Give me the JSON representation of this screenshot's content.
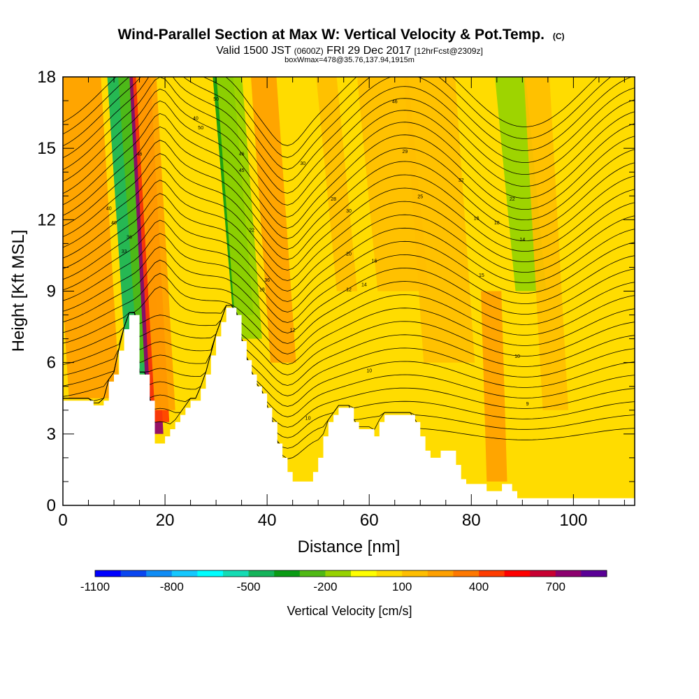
{
  "chart_data": {
    "type": "heatmap",
    "title": "Wind-Parallel Section at Max W: Vertical Velocity & Pot.Temp.",
    "title_mark": "(C)",
    "subtitle_parts": [
      "Valid 1500 JST",
      "(0600Z)",
      "FRI 29 Dec 2017",
      "[12hrFcst@2309z]"
    ],
    "subtitle2": "boxWmax=478@35.76,137.94,1915m",
    "xlabel": "Distance [nm]",
    "ylabel": "Height [Kft MSL]",
    "xlim": [
      0,
      112
    ],
    "ylim": [
      0,
      18
    ],
    "x_ticks": [
      "0",
      "20",
      "40",
      "60",
      "80",
      "100"
    ],
    "y_ticks": [
      "0",
      "3",
      "6",
      "9",
      "12",
      "15",
      "18"
    ],
    "colorbar": {
      "label": "Vertical Velocity [cm/s]",
      "tick_labels": [
        "-1100",
        "-800",
        "-500",
        "-200",
        "100",
        "400",
        "700"
      ],
      "levels": [
        -1100,
        -1000,
        -900,
        -800,
        -700,
        -600,
        -500,
        -400,
        -300,
        -200,
        -100,
        0,
        100,
        200,
        300,
        400,
        500,
        600,
        700,
        800
      ],
      "colors": [
        "#0000ff",
        "#0a46f0",
        "#0f8cf5",
        "#14c8ff",
        "#00ffff",
        "#14dcb4",
        "#14b45a",
        "#0a9b14",
        "#50b914",
        "#96d200",
        "#ffff00",
        "#ffdc00",
        "#ffbe00",
        "#ffa000",
        "#ff7800",
        "#ff3c00",
        "#ff0000",
        "#c80032",
        "#8c006e",
        "#5a0096"
      ]
    },
    "terrain_kft": [
      [
        0,
        4.4
      ],
      [
        6,
        4.4
      ],
      [
        6,
        4.2
      ],
      [
        8,
        4.2
      ],
      [
        8,
        4.4
      ],
      [
        9,
        4.4
      ],
      [
        9,
        5.2
      ],
      [
        10,
        5.2
      ],
      [
        10,
        5.5
      ],
      [
        11,
        5.5
      ],
      [
        11,
        6.5
      ],
      [
        12,
        6.5
      ],
      [
        12,
        7.4
      ],
      [
        13,
        7.4
      ],
      [
        13,
        8
      ],
      [
        15,
        8
      ],
      [
        15,
        5.5
      ],
      [
        17,
        5.5
      ],
      [
        17,
        4.4
      ],
      [
        18,
        4.4
      ],
      [
        18,
        2.6
      ],
      [
        20,
        2.6
      ],
      [
        20,
        2.9
      ],
      [
        21,
        2.9
      ],
      [
        21,
        3.2
      ],
      [
        22,
        3.2
      ],
      [
        22,
        3.5
      ],
      [
        23,
        3.5
      ],
      [
        23,
        3.8
      ],
      [
        24,
        3.8
      ],
      [
        24,
        4.1
      ],
      [
        25,
        4.1
      ],
      [
        25,
        4.4
      ],
      [
        27,
        4.4
      ],
      [
        27,
        4.9
      ],
      [
        28,
        4.9
      ],
      [
        28,
        5.5
      ],
      [
        29,
        5.5
      ],
      [
        29,
        6.3
      ],
      [
        30,
        6.3
      ],
      [
        30,
        7.1
      ],
      [
        31,
        7.1
      ],
      [
        31,
        7.7
      ],
      [
        32,
        7.7
      ],
      [
        32,
        8.3
      ],
      [
        34,
        8.3
      ],
      [
        34,
        8
      ],
      [
        35,
        8
      ],
      [
        35,
        6.9
      ],
      [
        36,
        6.9
      ],
      [
        36,
        6.1
      ],
      [
        37,
        6.1
      ],
      [
        37,
        5.5
      ],
      [
        38,
        5.5
      ],
      [
        38,
        5
      ],
      [
        39,
        5
      ],
      [
        39,
        4.7
      ],
      [
        40,
        4.7
      ],
      [
        40,
        4.1
      ],
      [
        41,
        4.1
      ],
      [
        41,
        3.5
      ],
      [
        42,
        3.5
      ],
      [
        42,
        2.6
      ],
      [
        43,
        2.6
      ],
      [
        43,
        2
      ],
      [
        44,
        2
      ],
      [
        44,
        1.4
      ],
      [
        45,
        1.4
      ],
      [
        45,
        1
      ],
      [
        49,
        1
      ],
      [
        49,
        1.4
      ],
      [
        50,
        1.4
      ],
      [
        50,
        2
      ],
      [
        51,
        2
      ],
      [
        51,
        2.9
      ],
      [
        52,
        2.9
      ],
      [
        52,
        3.5
      ],
      [
        53,
        3.5
      ],
      [
        53,
        3.8
      ],
      [
        54,
        3.8
      ],
      [
        54,
        4.1
      ],
      [
        57,
        4.1
      ],
      [
        57,
        3.5
      ],
      [
        58,
        3.5
      ],
      [
        58,
        3.2
      ],
      [
        61,
        3.2
      ],
      [
        61,
        2.9
      ],
      [
        62,
        2.9
      ],
      [
        62,
        3.5
      ],
      [
        63,
        3.5
      ],
      [
        63,
        3.8
      ],
      [
        69,
        3.8
      ],
      [
        69,
        3.5
      ],
      [
        70,
        3.5
      ],
      [
        70,
        2.9
      ],
      [
        71,
        2.9
      ],
      [
        71,
        2.3
      ],
      [
        72,
        2.3
      ],
      [
        72,
        2
      ],
      [
        74,
        2
      ],
      [
        74,
        2.3
      ],
      [
        77,
        2.3
      ],
      [
        77,
        1.7
      ],
      [
        78,
        1.7
      ],
      [
        78,
        1.1
      ],
      [
        79,
        1.1
      ],
      [
        79,
        0.9
      ],
      [
        83,
        0.9
      ],
      [
        83,
        0.6
      ],
      [
        86,
        0.6
      ],
      [
        86,
        0.9
      ],
      [
        88,
        0.9
      ],
      [
        88,
        0.6
      ],
      [
        89,
        0.6
      ],
      [
        89,
        0.3
      ],
      [
        112,
        0.3
      ]
    ],
    "velocity_features": [
      {
        "x0": 12,
        "x1": 17,
        "y0": 5.5,
        "y1": 18,
        "w": -500
      },
      {
        "x0": 14,
        "x1": 18,
        "y0": 6,
        "y1": 18,
        "w": -300
      },
      {
        "x0": 17,
        "x1": 20,
        "y0": 3,
        "y1": 18,
        "w": 700
      },
      {
        "x0": 17.5,
        "x1": 21,
        "y0": 3.5,
        "y1": 18,
        "w": 400
      },
      {
        "x0": 18,
        "x1": 22,
        "y0": 4,
        "y1": 18,
        "w": 200
      },
      {
        "x0": 32,
        "x1": 36,
        "y0": 8,
        "y1": 18,
        "w": -400
      },
      {
        "x0": 33,
        "x1": 38,
        "y0": 7,
        "y1": 18,
        "w": -200
      },
      {
        "x0": 40,
        "x1": 45,
        "y0": 6,
        "y1": 18,
        "w": 200
      },
      {
        "x0": 52,
        "x1": 56,
        "y0": 9,
        "y1": 18,
        "w": 100
      },
      {
        "x0": 70,
        "x1": 80,
        "y0": 6,
        "y1": 18,
        "w": 100
      },
      {
        "x0": 87,
        "x1": 93,
        "y0": 9,
        "y1": 18,
        "w": -200
      },
      {
        "x0": 84,
        "x1": 88,
        "y0": 1,
        "y1": 9,
        "w": 200
      },
      {
        "x0": 94,
        "x1": 99,
        "y0": 4,
        "y1": 18,
        "w": 100
      },
      {
        "x0": 1,
        "x1": 11,
        "y0": 4.5,
        "y1": 18,
        "w": 200
      },
      {
        "x0": 60,
        "x1": 70,
        "y0": 9,
        "y1": 18,
        "w": 100
      }
    ],
    "contour_labels": [
      {
        "text": "50",
        "x": 30,
        "y": 17.0
      },
      {
        "text": "50",
        "x": 27,
        "y": 15.8
      },
      {
        "text": "40",
        "x": 26,
        "y": 16.2
      },
      {
        "text": "46",
        "x": 15,
        "y": 14.7
      },
      {
        "text": "46",
        "x": 35,
        "y": 14.7
      },
      {
        "text": "45",
        "x": 35,
        "y": 14.0
      },
      {
        "text": "40",
        "x": 9,
        "y": 12.4
      },
      {
        "text": "40",
        "x": 10,
        "y": 11.8
      },
      {
        "text": "36",
        "x": 13,
        "y": 11.2
      },
      {
        "text": "36",
        "x": 40,
        "y": 9.4
      },
      {
        "text": "33",
        "x": 12,
        "y": 10.6
      },
      {
        "text": "30",
        "x": 47,
        "y": 14.3
      },
      {
        "text": "30",
        "x": 56,
        "y": 12.3
      },
      {
        "text": "28",
        "x": 53,
        "y": 12.8
      },
      {
        "text": "29",
        "x": 67,
        "y": 14.8
      },
      {
        "text": "25",
        "x": 70,
        "y": 12.9
      },
      {
        "text": "22",
        "x": 37,
        "y": 11.5
      },
      {
        "text": "22",
        "x": 88,
        "y": 12.8
      },
      {
        "text": "20",
        "x": 56,
        "y": 10.5
      },
      {
        "text": "18",
        "x": 39,
        "y": 9.0
      },
      {
        "text": "18",
        "x": 85,
        "y": 11.8
      },
      {
        "text": "16",
        "x": 81,
        "y": 12.0
      },
      {
        "text": "16",
        "x": 61,
        "y": 10.2
      },
      {
        "text": "14",
        "x": 59,
        "y": 9.2
      },
      {
        "text": "14",
        "x": 90,
        "y": 11.1
      },
      {
        "text": "12",
        "x": 56,
        "y": 9.0
      },
      {
        "text": "12",
        "x": 45,
        "y": 7.3
      },
      {
        "text": "10",
        "x": 60,
        "y": 5.6
      },
      {
        "text": "10",
        "x": 89,
        "y": 6.2
      },
      {
        "text": "10",
        "x": 48,
        "y": 3.6
      },
      {
        "text": "9",
        "x": 91,
        "y": 4.2
      },
      {
        "text": "15",
        "x": 82,
        "y": 9.6
      },
      {
        "text": "46",
        "x": 65,
        "y": 16.9
      },
      {
        "text": "32",
        "x": 78,
        "y": 13.6
      }
    ]
  }
}
